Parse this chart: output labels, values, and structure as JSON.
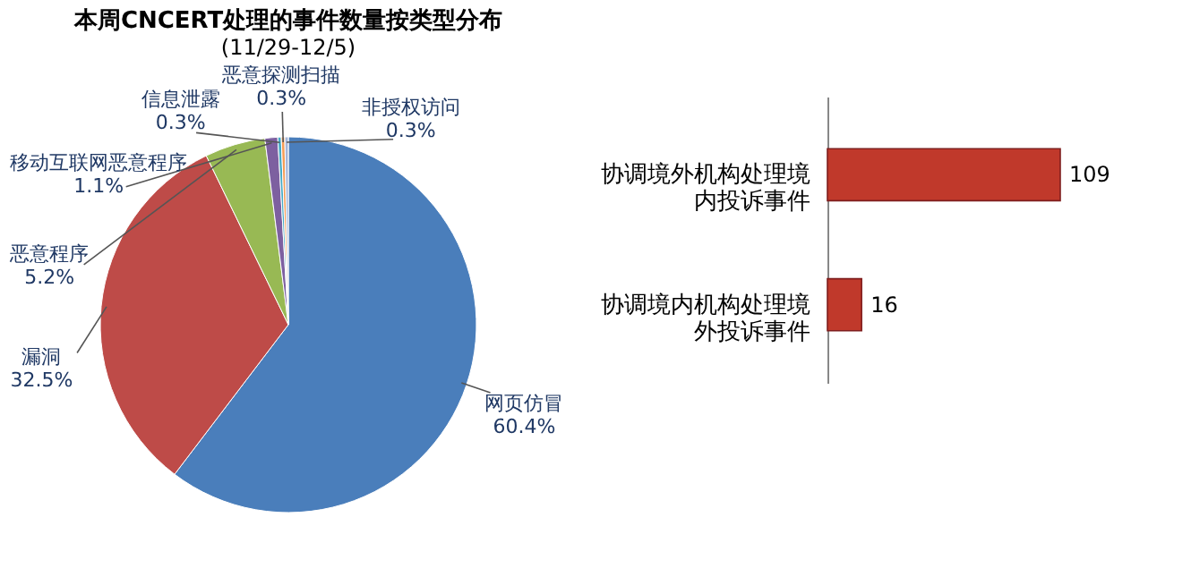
{
  "chart_data": [
    {
      "type": "pie",
      "title": "本周CNCERT处理的事件数量按类型分布",
      "subtitle": "(11/29-12/5)",
      "categories": [
        "网页仿冒",
        "漏洞",
        "恶意程序",
        "移动互联网恶意程序",
        "信息泄露",
        "恶意探测扫描",
        "非授权访问"
      ],
      "values": [
        60.4,
        32.5,
        5.2,
        1.1,
        0.3,
        0.3,
        0.3
      ],
      "value_labels": [
        "60.4%",
        "32.5%",
        "5.2%",
        "1.1%",
        "0.3%",
        "0.3%",
        "0.3%"
      ],
      "colors": [
        "#4a7ebb",
        "#be4b48",
        "#98b954",
        "#7d60a0",
        "#46aac5",
        "#f59d56",
        "#a5b6d8"
      ]
    },
    {
      "type": "bar",
      "orientation": "horizontal",
      "categories": [
        "协调境外机构处理境内投诉事件",
        "协调境内机构处理境外投诉事件"
      ],
      "values": [
        109,
        16
      ],
      "color": "#c0392b",
      "data_labels": true
    }
  ]
}
